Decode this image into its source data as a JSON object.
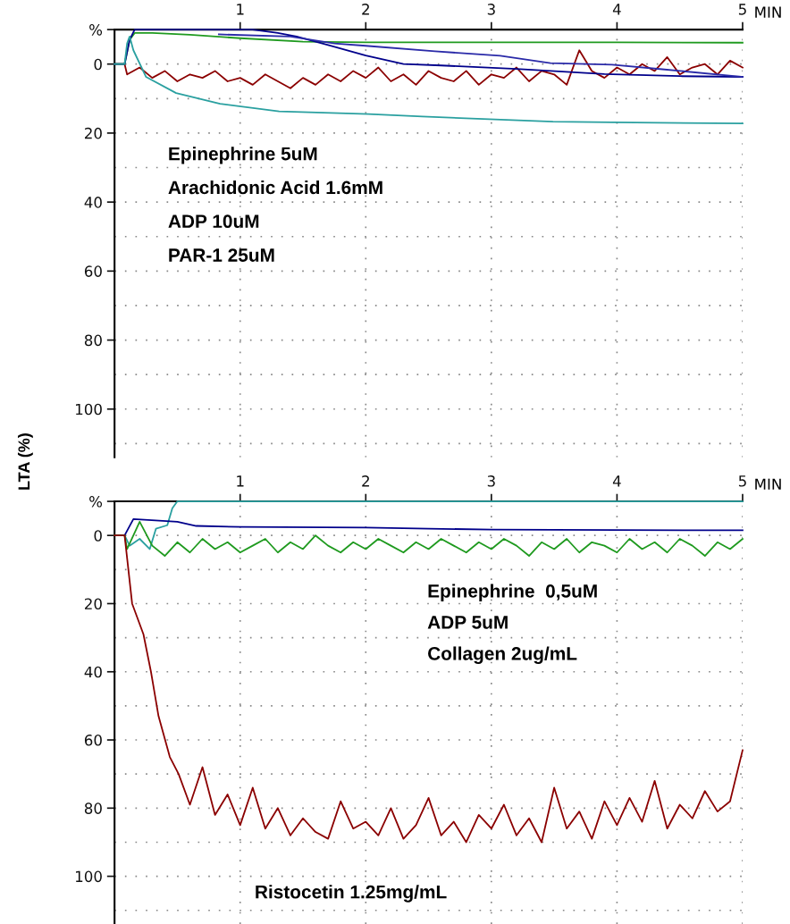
{
  "chart_data": [
    {
      "type": "line",
      "ylabel": "LTA (%)",
      "xlabel": "MIN",
      "xlim": [
        0,
        5
      ],
      "xticks": [
        1,
        2,
        3,
        4,
        5
      ],
      "ylim": [
        114,
        -10
      ],
      "yticks": [
        {
          "value": -10,
          "label": "%"
        },
        0,
        {
          "value": 10,
          "label": null
        },
        20,
        {
          "value": 30,
          "label": null
        },
        40,
        {
          "value": 50,
          "label": null
        },
        60,
        {
          "value": 70,
          "label": null
        },
        80,
        {
          "value": 90,
          "label": null
        },
        100,
        {
          "value": 110,
          "label": null
        }
      ],
      "grid": true,
      "annotations": [
        "Epinephrine 5uM",
        "Arachidonic Acid 1.6mM",
        "ADP 10uM",
        "PAR-1 25uM"
      ],
      "series": [
        {
          "color": "#8b0000",
          "x": [
            0,
            0.08,
            0.1,
            0.2,
            0.3,
            0.4,
            0.5,
            0.6,
            0.7,
            0.8,
            0.9,
            1.0,
            1.1,
            1.2,
            1.3,
            1.4,
            1.5,
            1.6,
            1.7,
            1.8,
            1.9,
            2.0,
            2.1,
            2.2,
            2.3,
            2.4,
            2.5,
            2.6,
            2.7,
            2.8,
            2.9,
            3.0,
            3.1,
            3.2,
            3.3,
            3.4,
            3.5,
            3.6,
            3.7,
            3.8,
            3.9,
            4.0,
            4.1,
            4.2,
            4.3,
            4.4,
            4.5,
            4.6,
            4.7,
            4.8,
            4.9,
            5.0
          ],
          "values": [
            0,
            0,
            3,
            1,
            4,
            2,
            5,
            3,
            4,
            2,
            5,
            4,
            6,
            3,
            5,
            7,
            4,
            6,
            3,
            5,
            2,
            4,
            1,
            5,
            3,
            6,
            2,
            4,
            5,
            2,
            6,
            3,
            4,
            1,
            5,
            2,
            3,
            6,
            -4,
            2,
            4,
            1,
            3,
            0,
            2,
            -2,
            3,
            1,
            0,
            3,
            -1,
            1
          ]
        },
        {
          "color": "#1f9a1f",
          "x": [
            0,
            0.08,
            0.12,
            0.16,
            0.3,
            0.6,
            1.0,
            1.5,
            2.0,
            3.0,
            4.0,
            5.0
          ],
          "values": [
            0,
            0,
            -7,
            -9,
            -9,
            -8.5,
            -7.5,
            -6.5,
            -6.3,
            -6.3,
            -6.3,
            -6.2
          ]
        },
        {
          "color": "#00008b",
          "x": [
            0,
            0.08,
            0.12,
            0.16,
            1.1,
            1.3,
            1.45,
            1.7,
            2.0,
            2.3,
            2.6,
            3.2,
            3.9,
            4.5,
            5.0
          ],
          "values": [
            0,
            0,
            -7,
            -10,
            -10,
            -9,
            -8,
            -5.5,
            -2.5,
            0,
            0.4,
            1.4,
            2.9,
            3.5,
            3.7
          ]
        },
        {
          "color": "#2a2aa8",
          "x": [
            0.83,
            1.4,
            1.75,
            2.0,
            2.55,
            3.07,
            3.47,
            3.96,
            4.36,
            5.0
          ],
          "values": [
            -8.6,
            -8,
            -6,
            -5.3,
            -3.7,
            -2.4,
            -0.3,
            0.2,
            1.5,
            3.7
          ]
        },
        {
          "color": "#2aa0a0",
          "x": [
            0,
            0.08,
            0.1,
            0.12,
            0.15,
            0.25,
            0.49,
            0.84,
            1.31,
            2.02,
            2.45,
            3.49,
            3.96,
            5.0
          ],
          "values": [
            0,
            0,
            -6,
            -8,
            -4,
            3.7,
            8.4,
            11.5,
            13.7,
            14.5,
            15.2,
            16.7,
            16.9,
            17.2
          ]
        }
      ]
    },
    {
      "type": "line",
      "xlabel": "MIN",
      "xlim": [
        0,
        5
      ],
      "xticks": [
        1,
        2,
        3,
        4,
        5
      ],
      "ylim": [
        114,
        -10
      ],
      "yticks": [
        {
          "value": -10,
          "label": "%"
        },
        0,
        {
          "value": 10,
          "label": null
        },
        20,
        {
          "value": 30,
          "label": null
        },
        40,
        {
          "value": 50,
          "label": null
        },
        60,
        {
          "value": 70,
          "label": null
        },
        80,
        {
          "value": 90,
          "label": null
        },
        100,
        {
          "value": 110,
          "label": null
        }
      ],
      "grid": true,
      "annotations": [
        "Epinephrine  0,5uM",
        "ADP 5uM",
        "Collagen 2ug/mL",
        "Ristocetin 1.25mg/mL"
      ],
      "series": [
        {
          "color": "#2aa0a0",
          "x": [
            0,
            0.08,
            0.12,
            0.2,
            0.28,
            0.33,
            0.42,
            0.46,
            0.5,
            5.0
          ],
          "values": [
            0,
            0,
            3,
            1,
            4,
            -2,
            -3,
            -8,
            -10,
            -10
          ]
        },
        {
          "color": "#00008b",
          "x": [
            0,
            0.08,
            0.15,
            0.5,
            0.65,
            1.0,
            2.0,
            2.5,
            3.0,
            4.0,
            5.0
          ],
          "values": [
            0,
            0,
            -4.8,
            -4,
            -2.8,
            -2.5,
            -2.3,
            -2,
            -1.7,
            -1.6,
            -1.5
          ]
        },
        {
          "color": "#1f9a1f",
          "x": [
            0,
            0.08,
            0.1,
            0.2,
            0.3,
            0.4,
            0.5,
            0.6,
            0.7,
            0.8,
            0.9,
            1.0,
            1.1,
            1.2,
            1.3,
            1.4,
            1.5,
            1.6,
            1.7,
            1.8,
            1.9,
            2.0,
            2.1,
            2.2,
            2.3,
            2.4,
            2.5,
            2.6,
            2.7,
            2.8,
            2.9,
            3.0,
            3.1,
            3.2,
            3.3,
            3.4,
            3.5,
            3.6,
            3.7,
            3.8,
            3.9,
            4.0,
            4.1,
            4.2,
            4.3,
            4.4,
            4.5,
            4.6,
            4.7,
            4.8,
            4.9,
            5.0
          ],
          "values": [
            0,
            0,
            4,
            -4,
            3,
            6,
            2,
            5,
            1,
            4,
            2,
            5,
            3,
            1,
            5,
            2,
            4,
            0,
            3,
            5,
            2,
            4,
            1,
            3,
            5,
            2,
            4,
            1,
            3,
            5,
            2,
            4,
            1,
            3,
            6,
            2,
            4,
            1,
            5,
            2,
            3,
            5,
            1,
            4,
            2,
            5,
            1,
            3,
            6,
            2,
            4,
            1
          ]
        },
        {
          "color": "#8b0000",
          "x": [
            0,
            0.08,
            0.14,
            0.23,
            0.29,
            0.35,
            0.44,
            0.51,
            0.6,
            0.7,
            0.8,
            0.9,
            1.0,
            1.1,
            1.2,
            1.3,
            1.4,
            1.5,
            1.6,
            1.7,
            1.8,
            1.9,
            2.0,
            2.1,
            2.2,
            2.3,
            2.4,
            2.5,
            2.6,
            2.7,
            2.8,
            2.9,
            3.0,
            3.1,
            3.2,
            3.3,
            3.4,
            3.5,
            3.6,
            3.7,
            3.8,
            3.9,
            4.0,
            4.1,
            4.2,
            4.3,
            4.4,
            4.5,
            4.6,
            4.7,
            4.8,
            4.9,
            5.0
          ],
          "values": [
            0,
            0,
            20,
            29,
            40,
            53,
            65,
            70,
            79,
            68,
            82,
            76,
            85,
            74,
            86,
            80,
            88,
            83,
            87,
            89,
            78,
            86,
            84,
            88,
            80,
            89,
            85,
            77,
            88,
            84,
            90,
            82,
            86,
            79,
            88,
            83,
            90,
            74,
            86,
            81,
            89,
            78,
            85,
            77,
            84,
            72,
            86,
            79,
            83,
            75,
            81,
            78,
            63
          ]
        }
      ]
    }
  ]
}
